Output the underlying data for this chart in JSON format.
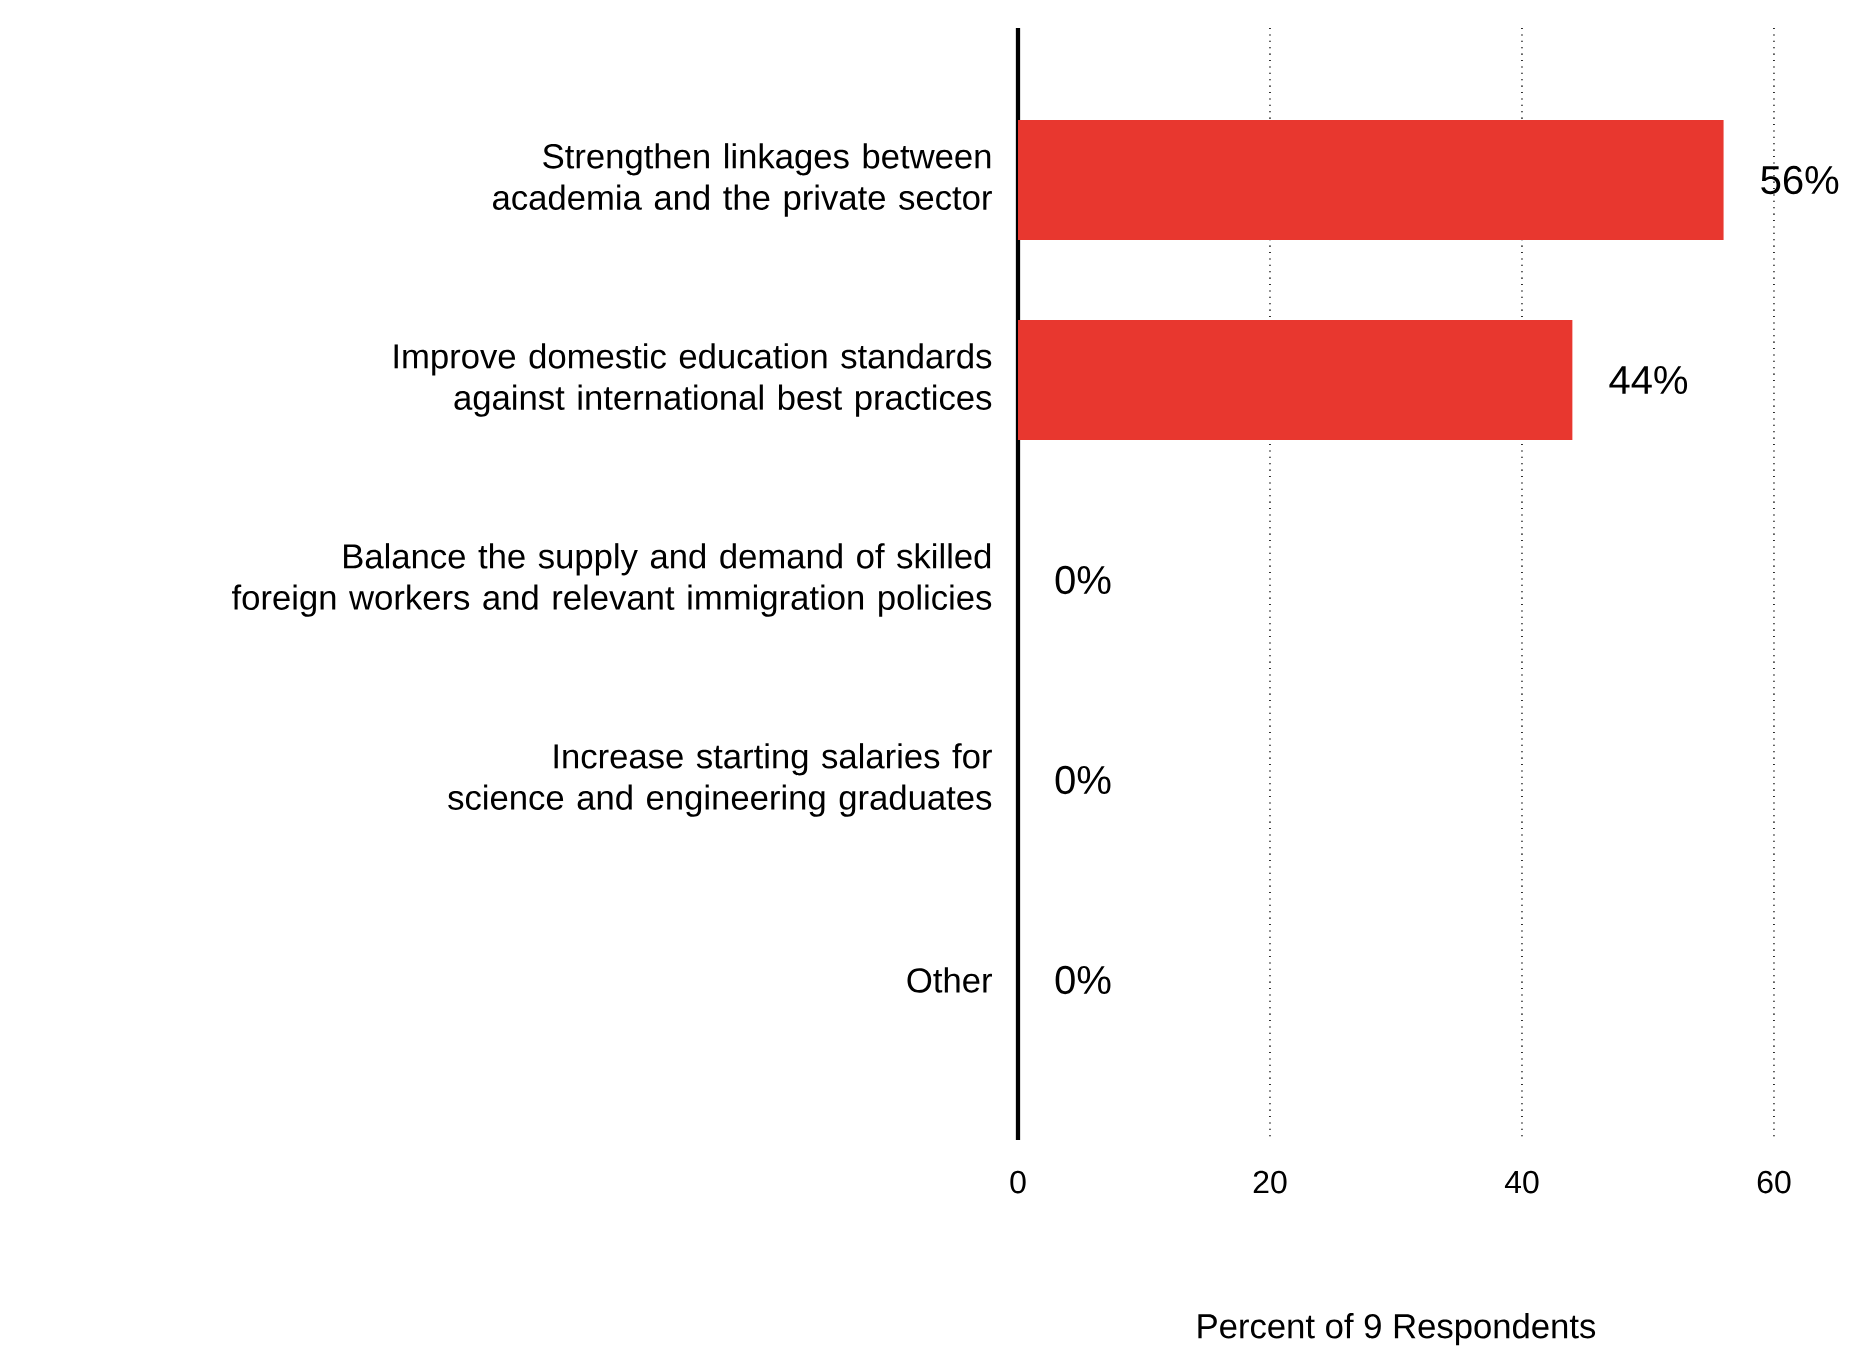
{
  "chart_data": {
    "type": "bar",
    "orientation": "horizontal",
    "xlabel": "Percent of 9 Respondents",
    "categories": [
      "Strengthen linkages between academia and the private sector",
      "Improve domestic education standards against international best practices",
      "Balance the supply and demand of skilled foreign workers and relevant immigration policies",
      "Increase starting salaries for science and engineering graduates",
      "Other"
    ],
    "values": [
      56,
      44,
      0,
      0,
      0
    ],
    "value_labels": [
      "56%",
      "44%",
      "0%",
      "0%",
      "0%"
    ],
    "color": "#e8372f",
    "xlim": [
      0,
      60
    ],
    "xticks": [
      0,
      20,
      40,
      60
    ],
    "grid": "x"
  }
}
